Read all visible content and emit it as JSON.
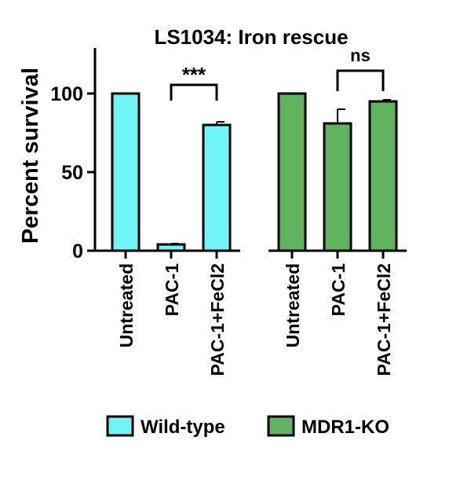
{
  "chart_data": {
    "type": "bar",
    "title": "LS1034: Iron rescue",
    "xlabel": "",
    "ylabel": "Percent survival",
    "ylim": [
      0,
      130
    ],
    "yticks": [
      0,
      50,
      100
    ],
    "grid": false,
    "legend_position": "bottom",
    "groups": [
      {
        "name": "Wild-type",
        "color": "#6ff4f7",
        "categories": [
          "Untreated",
          "PAC-1",
          "PAC-1+FeCl2"
        ],
        "values": [
          100,
          4,
          80
        ],
        "errors": [
          0,
          0.5,
          2
        ],
        "comparison": {
          "between": [
            "PAC-1",
            "PAC-1+FeCl2"
          ],
          "label": "***"
        }
      },
      {
        "name": "MDR1-KO",
        "color": "#5fb35c",
        "categories": [
          "Untreated",
          "PAC-1",
          "PAC-1+FeCl2"
        ],
        "values": [
          100,
          81,
          95
        ],
        "errors": [
          0,
          9,
          1
        ],
        "comparison": {
          "between": [
            "PAC-1",
            "PAC-1+FeCl2"
          ],
          "label": "ns"
        }
      }
    ]
  }
}
